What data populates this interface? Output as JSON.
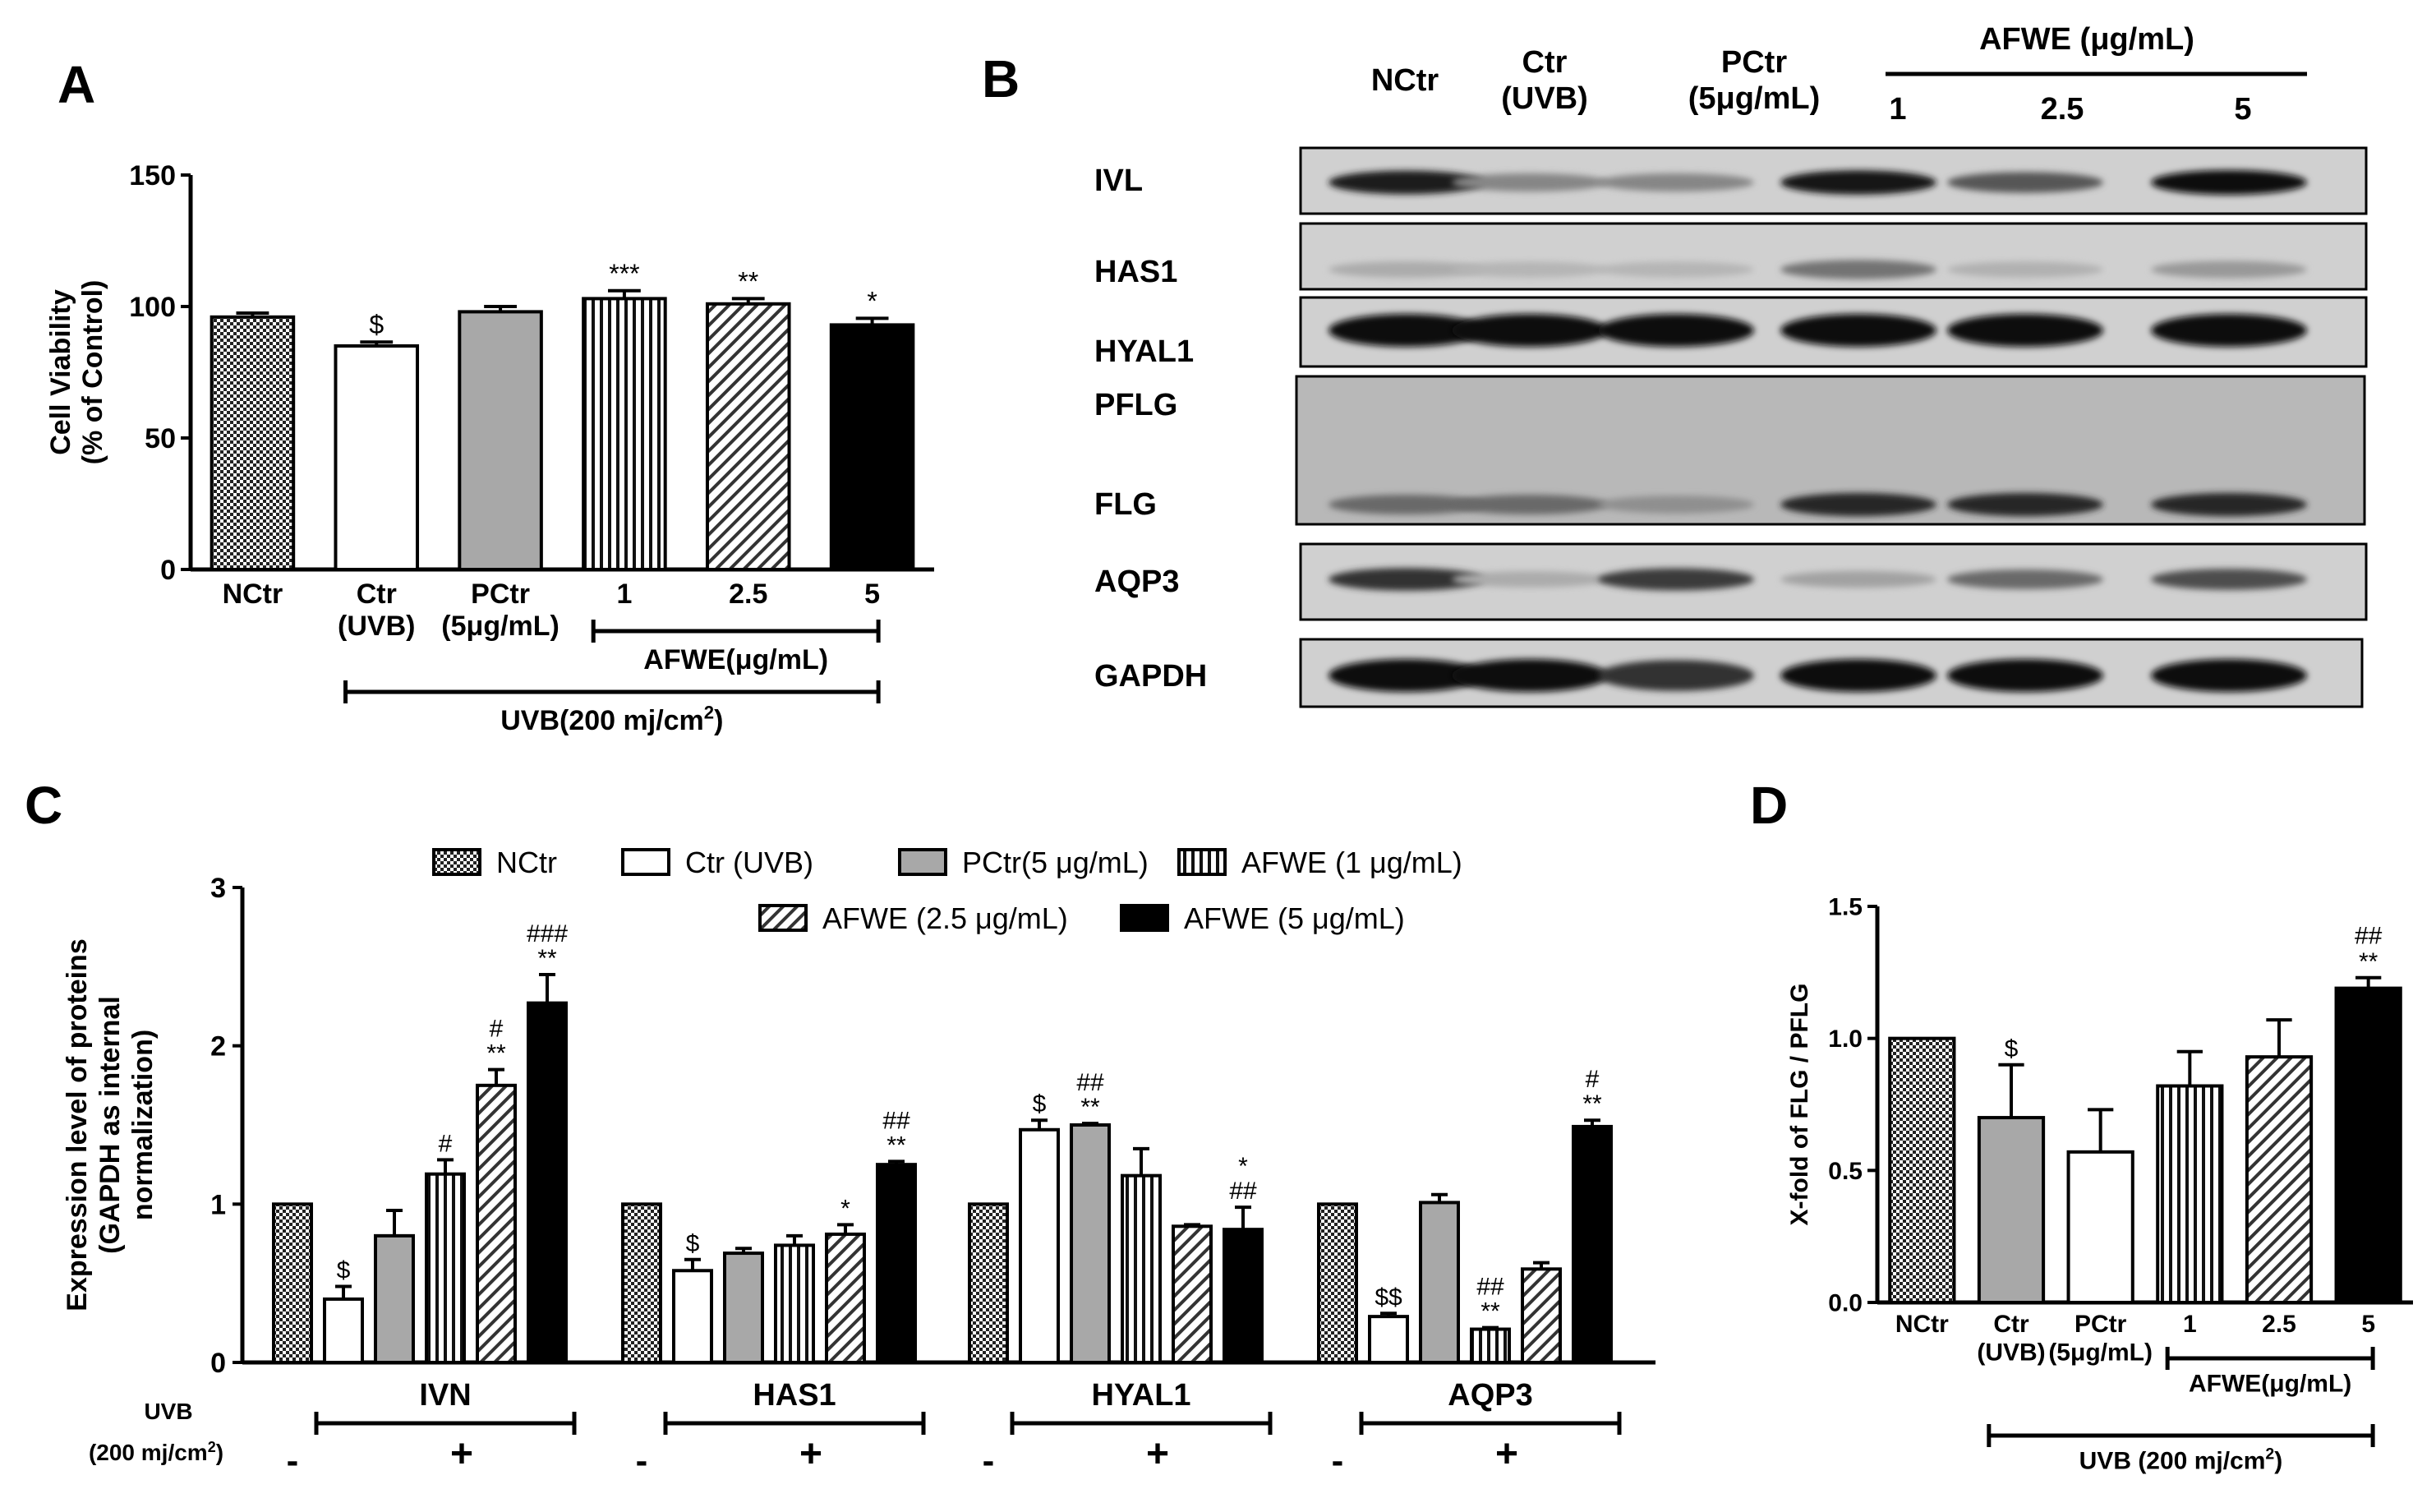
{
  "panels": {
    "A": {
      "letter": "A"
    },
    "B": {
      "letter": "B"
    },
    "C": {
      "letter": "C"
    },
    "D": {
      "letter": "D"
    }
  },
  "colors": {
    "white": "#ffffff",
    "gray": "#a8a8a8",
    "black": "#000000",
    "blot_bg": "#c4c4c4"
  },
  "chart_data": [
    {
      "panel": "A",
      "type": "bar",
      "ylabel_lines": [
        "Cell Viability",
        "(% of  Control)"
      ],
      "ylim": [
        0,
        150
      ],
      "yticks": [
        "0",
        "50",
        "100",
        "150"
      ],
      "yticks_values": [
        0,
        50,
        100,
        150
      ],
      "categories": [
        {
          "lines": [
            "NCtr"
          ],
          "pattern": "checker"
        },
        {
          "lines": [
            "Ctr",
            "(UVB)"
          ],
          "pattern": "white"
        },
        {
          "lines": [
            "PCtr",
            "(5μg/mL)"
          ],
          "pattern": "gray"
        },
        {
          "lines": [
            "1"
          ],
          "pattern": "vstripe"
        },
        {
          "lines": [
            "2.5"
          ],
          "pattern": "diag"
        },
        {
          "lines": [
            "5"
          ],
          "pattern": "black"
        }
      ],
      "values": [
        96,
        85,
        98,
        103,
        101,
        93
      ],
      "errors": [
        1.5,
        1.5,
        2,
        3,
        2,
        2.5
      ],
      "annotations": [
        [
          ""
        ],
        [
          "$"
        ],
        [
          ""
        ],
        [
          "***"
        ],
        [
          "**"
        ],
        [
          "*"
        ]
      ],
      "brackets": [
        {
          "label": "AFWE(μg/mL)",
          "from": 3,
          "to": 5
        },
        {
          "label": "UVB(200 mj/cm",
          "sup": "2",
          "after": ")",
          "from": 1,
          "to": 5
        }
      ]
    },
    {
      "panel": "C",
      "type": "bar",
      "ylabel_lines": [
        "Expression level of proteins",
        "(GAPDH as internal",
        "normalization)"
      ],
      "ylim": [
        0,
        3
      ],
      "yticks": [
        "0",
        "1",
        "2",
        "3"
      ],
      "yticks_values": [
        0,
        1,
        2,
        3
      ],
      "legend": [
        "NCtr",
        "Ctr (UVB)",
        "PCtr(5 μg/mL)",
        "AFWE (1 μg/mL)",
        "AFWE (2.5 μg/mL)",
        "AFWE (5 μg/mL)"
      ],
      "legend_patterns": [
        "checker",
        "white",
        "gray",
        "vstripe",
        "diag",
        "black"
      ],
      "groups": [
        "IVN",
        "HAS1",
        "HYAL1",
        "AQP3"
      ],
      "series": [
        {
          "name": "NCtr",
          "values": [
            1.0,
            1.0,
            1.0,
            1.0
          ],
          "errors": [
            0,
            0,
            0,
            0
          ]
        },
        {
          "name": "Ctr (UVB)",
          "values": [
            0.4,
            0.58,
            1.47,
            0.29
          ],
          "errors": [
            0.08,
            0.07,
            0.06,
            0.02
          ]
        },
        {
          "name": "PCtr(5 μg/mL)",
          "values": [
            0.8,
            0.69,
            1.5,
            1.01
          ],
          "errors": [
            0.16,
            0.03,
            0.01,
            0.05
          ]
        },
        {
          "name": "AFWE (1 μg/mL)",
          "values": [
            1.19,
            0.74,
            1.18,
            0.21
          ],
          "errors": [
            0.09,
            0.06,
            0.17,
            0.01
          ]
        },
        {
          "name": "AFWE (2.5 μg/mL)",
          "values": [
            1.75,
            0.81,
            0.86,
            0.59
          ],
          "errors": [
            0.1,
            0.06,
            0.01,
            0.04
          ]
        },
        {
          "name": "AFWE (5 μg/mL)",
          "values": [
            2.27,
            1.25,
            0.84,
            1.49
          ],
          "errors": [
            0.18,
            0.02,
            0.14,
            0.04
          ]
        }
      ],
      "annotations": [
        [
          [],
          [],
          [],
          []
        ],
        [
          [
            "$"
          ],
          [
            "$"
          ],
          [
            "$"
          ],
          [
            "$$"
          ]
        ],
        [
          [],
          [],
          [
            "##",
            "**"
          ],
          []
        ],
        [
          [
            "#"
          ],
          [],
          [],
          [
            "##",
            "**"
          ]
        ],
        [
          [
            "#",
            "**"
          ],
          [
            "*"
          ],
          [],
          []
        ],
        [
          [
            "###",
            "**"
          ],
          [
            "##",
            "**"
          ],
          [
            "*",
            "##"
          ],
          [
            "#",
            "**"
          ]
        ]
      ],
      "uvb_label_lines": [
        "UVB",
        "(200 mj/cm",
        "2",
        ")"
      ],
      "minus_label": "-",
      "plus_label": "+"
    },
    {
      "panel": "D",
      "type": "bar",
      "ylabel": "X-fold of  FLG / PFLG",
      "ylim": [
        0,
        1.5
      ],
      "yticks": [
        "0.0",
        "0.5",
        "1.0",
        "1.5"
      ],
      "yticks_values": [
        0,
        0.5,
        1.0,
        1.5
      ],
      "categories": [
        {
          "lines": [
            "NCtr"
          ],
          "pattern": "checker"
        },
        {
          "lines": [
            "Ctr",
            "(UVB)"
          ],
          "pattern": "gray"
        },
        {
          "lines": [
            "PCtr",
            "(5μg/mL)"
          ],
          "pattern": "white"
        },
        {
          "lines": [
            "1"
          ],
          "pattern": "vstripe"
        },
        {
          "lines": [
            "2.5"
          ],
          "pattern": "diag"
        },
        {
          "lines": [
            "5"
          ],
          "pattern": "black"
        }
      ],
      "values": [
        1.0,
        0.7,
        0.57,
        0.82,
        0.93,
        1.19
      ],
      "errors": [
        0,
        0.2,
        0.16,
        0.13,
        0.14,
        0.04
      ],
      "annotations": [
        [
          ""
        ],
        [
          "$"
        ],
        [
          ""
        ],
        [
          ""
        ],
        [
          ""
        ],
        [
          "##",
          "**"
        ]
      ],
      "brackets": [
        {
          "label": "AFWE(μg/mL)",
          "from": 3,
          "to": 5
        },
        {
          "label": "UVB (200 mj/cm",
          "sup": "2",
          "after": ")",
          "from": 1,
          "to": 5
        }
      ]
    }
  ],
  "blot": {
    "lane_labels": [
      [
        "NCtr"
      ],
      [
        "Ctr",
        "(UVB)"
      ],
      [
        "PCtr",
        "(5μg/mL)"
      ],
      [
        "1"
      ],
      [
        "2.5"
      ],
      [
        "5"
      ]
    ],
    "group_label": "AFWE (μg/mL)",
    "rows": [
      {
        "label": "IVL",
        "intensity": [
          0.9,
          0.35,
          0.35,
          0.95,
          0.6,
          1.0
        ]
      },
      {
        "label": "HAS1",
        "intensity": [
          0.15,
          0.1,
          0.1,
          0.45,
          0.12,
          0.25
        ]
      },
      {
        "label": "HYAL1",
        "intensity": [
          1.0,
          1.0,
          1.0,
          1.0,
          1.0,
          1.0
        ]
      },
      {
        "label": "PFLG",
        "intensity": []
      },
      {
        "label": "FLG",
        "intensity": [
          0.5,
          0.5,
          0.3,
          0.85,
          0.85,
          0.85
        ]
      },
      {
        "label": "AQP3",
        "intensity": [
          0.8,
          0.15,
          0.75,
          0.2,
          0.5,
          0.65
        ]
      },
      {
        "label": "GAPDH",
        "intensity": [
          1.0,
          1.0,
          0.8,
          1.0,
          1.0,
          1.0
        ]
      }
    ]
  }
}
